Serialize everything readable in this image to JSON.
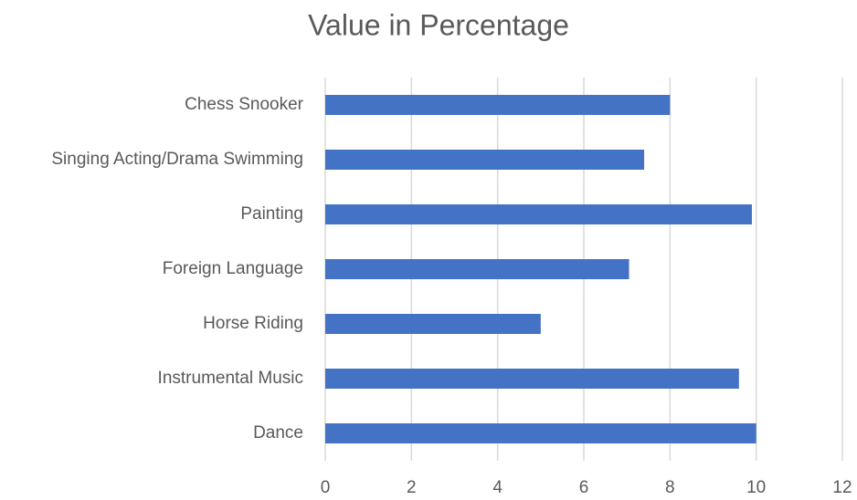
{
  "chart_data": {
    "type": "bar",
    "orientation": "horizontal",
    "title": "Value in Percentage",
    "categories": [
      "Chess Snooker",
      "Singing Acting/Drama Swimming",
      "Painting",
      "Foreign Language",
      "Horse Riding",
      "Instrumental Music",
      "Dance"
    ],
    "values": [
      8,
      7.4,
      9.9,
      7.05,
      5,
      9.6,
      10
    ],
    "color": "#4472c4",
    "xlim": [
      0,
      12
    ],
    "xticks": [
      0,
      2,
      4,
      6,
      8,
      10,
      12
    ],
    "grid": true
  }
}
